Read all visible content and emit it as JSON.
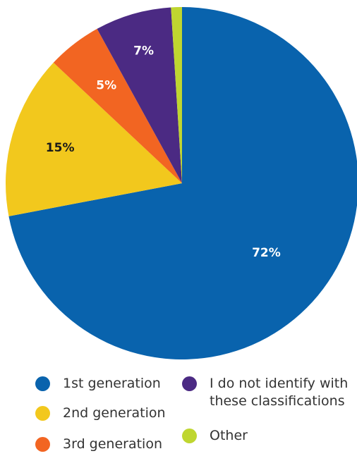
{
  "chart_data": {
    "type": "pie",
    "title": "",
    "slices": [
      {
        "name": "1st generation",
        "value": 72,
        "label": "72%",
        "color": "#0963ad"
      },
      {
        "name": "2nd generation",
        "value": 15,
        "label": "15%",
        "color": "#f2c81d"
      },
      {
        "name": "3rd generation",
        "value": 5,
        "label": "5%",
        "color": "#f26522"
      },
      {
        "name": "I do not identify with\nthese classifications",
        "value": 7,
        "label": "7%",
        "color": "#4b2a83"
      },
      {
        "name": "Other",
        "value": 1,
        "label": "",
        "color": "#bfd630"
      }
    ],
    "legend_position": "bottom",
    "start_angle_deg": 0,
    "direction": "clockwise"
  }
}
